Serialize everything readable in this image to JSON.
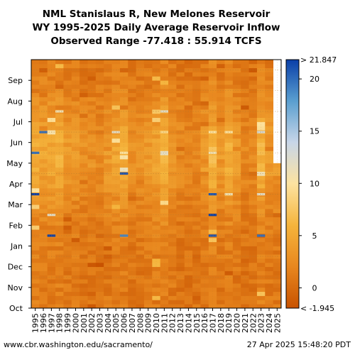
{
  "chart_data": {
    "type": "heatmap",
    "title_lines": [
      "NML Stanislaus R, New Melones Reservoir",
      "WY 1995-2025 Daily Average Reservoir Inflow",
      "Observed Range -77.418 : 55.914 TCFS"
    ],
    "x_labels": [
      "1995",
      "1996",
      "1997",
      "1998",
      "1999",
      "2000",
      "2001",
      "2002",
      "2003",
      "2004",
      "2005",
      "2006",
      "2007",
      "2008",
      "2009",
      "2010",
      "2011",
      "2012",
      "2013",
      "2014",
      "2015",
      "2016",
      "2017",
      "2018",
      "2019",
      "2020",
      "2021",
      "2022",
      "2023",
      "2024",
      "2025"
    ],
    "y_labels": [
      "Oct",
      "Nov",
      "Dec",
      "Jan",
      "Feb",
      "Mar",
      "Apr",
      "May",
      "Jun",
      "Jul",
      "Aug",
      "Sep"
    ],
    "colorbar": {
      "ticks": [
        0,
        5,
        10,
        15,
        20
      ],
      "top_label": "> 21.847",
      "bottom_label": "< -1.945",
      "min": -1.945,
      "max": 21.847,
      "colors": [
        "#c85200",
        "#e8871e",
        "#f5b43c",
        "#fde3a0",
        "#c8d6e8",
        "#5a9fd0",
        "#0a3fa8"
      ]
    },
    "wy2025_last_month": "Apr",
    "high_flow_events": [
      {
        "year": "1995",
        "month": "May",
        "value": 20
      },
      {
        "year": "1995",
        "month": "Mar",
        "value": 22
      },
      {
        "year": "1996",
        "month": "Jun",
        "value": 20
      },
      {
        "year": "1997",
        "month": "Jan",
        "value": 22
      },
      {
        "year": "1997",
        "month": "Feb",
        "value": 12
      },
      {
        "year": "1998",
        "month": "Jul",
        "value": 11
      },
      {
        "year": "2005",
        "month": "Jun",
        "value": 12
      },
      {
        "year": "2006",
        "month": "Apr",
        "value": 21
      },
      {
        "year": "2006",
        "month": "Jan",
        "value": 19
      },
      {
        "year": "2006",
        "month": "May",
        "value": 10
      },
      {
        "year": "2011",
        "month": "Jul",
        "value": 12
      },
      {
        "year": "2011",
        "month": "Jun",
        "value": 9
      },
      {
        "year": "2017",
        "month": "Feb",
        "value": 22
      },
      {
        "year": "2017",
        "month": "Mar",
        "value": 21
      },
      {
        "year": "2017",
        "month": "Jan",
        "value": 21
      },
      {
        "year": "2017",
        "month": "May",
        "value": 11
      },
      {
        "year": "2017",
        "month": "Jun",
        "value": 10
      },
      {
        "year": "2019",
        "month": "Jun",
        "value": 10
      },
      {
        "year": "2019",
        "month": "Mar",
        "value": 11
      },
      {
        "year": "2023",
        "month": "Jun",
        "value": 13
      },
      {
        "year": "2023",
        "month": "Jan",
        "value": 20
      },
      {
        "year": "2023",
        "month": "Mar",
        "value": 12
      }
    ]
  },
  "footer": {
    "source": "www.cbr.washington.edu/sacramento/",
    "timestamp": "27 Apr 2025 15:48:20 PDT"
  }
}
